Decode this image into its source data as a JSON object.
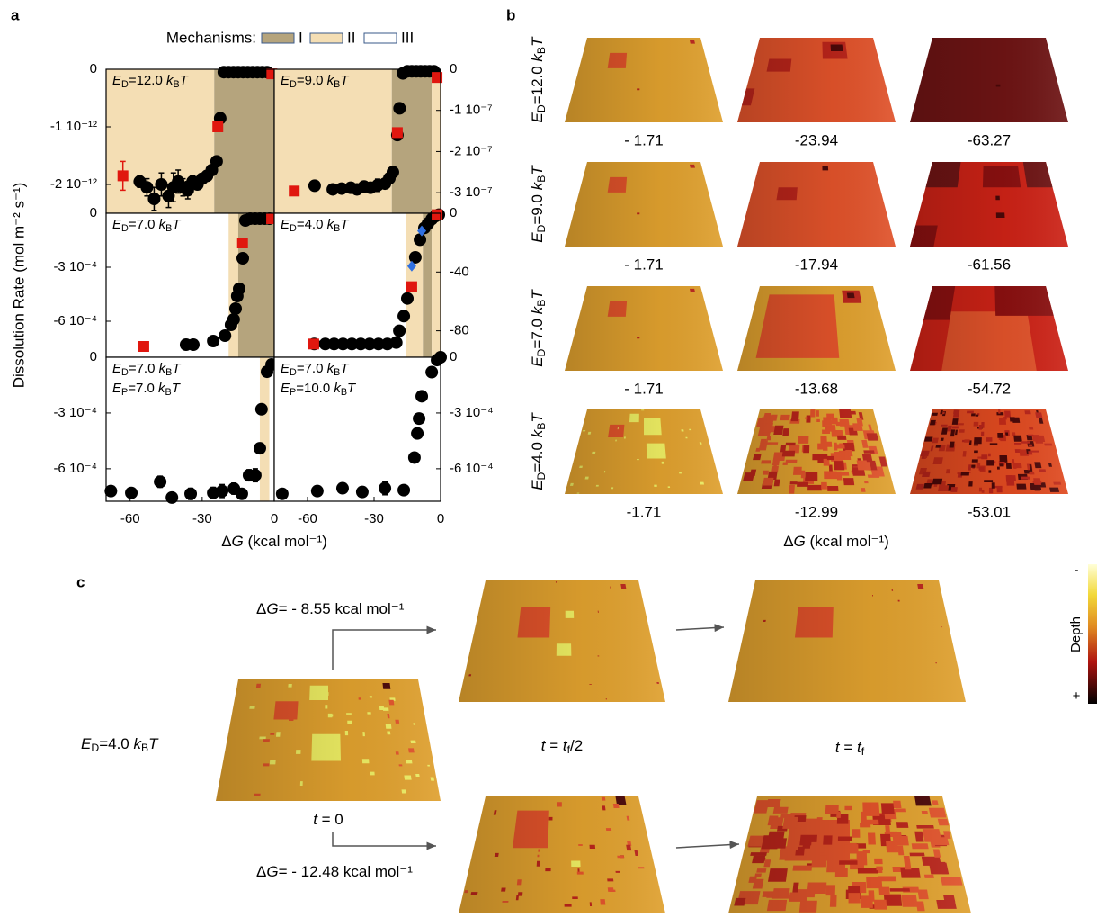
{
  "panel_a": {
    "label": "a",
    "legend_title": "Mechanisms:",
    "mechanisms": [
      {
        "name": "I",
        "color": "#b5a47d"
      },
      {
        "name": "II",
        "color": "#f4deb4"
      },
      {
        "name": "III",
        "color": "#ffffff"
      }
    ],
    "ylabel": "Dissolution Rate (mol m⁻² s⁻¹)",
    "xlabel": [
      "Δ",
      "G",
      " (kcal mol⁻¹)"
    ]
  },
  "chart_data": [
    {
      "type": "scatter",
      "annotation": [
        [
          "E",
          {
            "sub": "D"
          },
          "=12.0 ",
          "k",
          {
            "sub": "B"
          },
          "T"
        ]
      ],
      "xlim": [
        -70,
        0
      ],
      "ylim": [
        -2.5e-12,
        0
      ],
      "yticks": [
        0,
        {
          "value": -1e-12,
          "label": "-1 10⁻¹²"
        },
        {
          "value": -2e-12,
          "label": "-2 10⁻¹²"
        }
      ],
      "regions": [
        {
          "mechanism": "II",
          "from": -70,
          "to": -25
        },
        {
          "mechanism": "I",
          "from": -25,
          "to": 0
        }
      ],
      "series": [
        {
          "marker": "circle",
          "color": "#000000",
          "x": [
            -56,
            -53,
            -50,
            -47,
            -44,
            -42,
            -40,
            -38,
            -36,
            -34,
            -32,
            -30,
            -28,
            -26,
            -24,
            -22.5,
            -21,
            -19,
            -17,
            -15,
            -13,
            -11,
            -9,
            -7,
            -5,
            -3
          ],
          "values": [
            -1.95e-12,
            -2.05e-12,
            -2.25e-12,
            -2e-12,
            -2.2e-12,
            -2.05e-12,
            -1.95e-12,
            -2.05e-12,
            -2.1e-12,
            -1.95e-12,
            -2e-12,
            -1.9e-12,
            -1.85e-12,
            -1.75e-12,
            -1.6e-12,
            -8.5e-13,
            -5e-14,
            -5e-14,
            -5e-14,
            -5e-14,
            -5e-14,
            -5e-14,
            -5e-14,
            -5e-14,
            -5e-14,
            -5e-14
          ],
          "errors": [
            1e-13,
            1.5e-13,
            2e-13,
            2e-13,
            2e-13,
            2.5e-13,
            2e-13,
            1.5e-13,
            1.5e-13,
            1e-13,
            null,
            null,
            null,
            null,
            null,
            null,
            null,
            null,
            null,
            null,
            null,
            null,
            null,
            null,
            null,
            null
          ]
        },
        {
          "marker": "square",
          "color": "#e0170f",
          "x": [
            -63,
            -23.5,
            -1
          ],
          "values": [
            -1.85e-12,
            -1e-12,
            -8e-14
          ],
          "errors": [
            2.5e-13,
            null,
            null
          ]
        }
      ]
    },
    {
      "type": "scatter",
      "annotation": [
        [
          "E",
          {
            "sub": "D"
          },
          "=9.0 ",
          "k",
          {
            "sub": "B"
          },
          "T"
        ]
      ],
      "xlim": [
        -75,
        0
      ],
      "ylim": [
        -3.5e-07,
        0
      ],
      "yticks": [
        0,
        {
          "value": -1e-07,
          "label": "-1 10⁻⁷"
        },
        {
          "value": -2e-07,
          "label": "-2 10⁻⁷"
        },
        {
          "value": -3e-07,
          "label": "-3 10⁻⁷"
        }
      ],
      "regions": [
        {
          "mechanism": "II",
          "from": -75,
          "to": -22
        },
        {
          "mechanism": "I",
          "from": -22,
          "to": -4
        },
        {
          "mechanism": "II",
          "from": -4,
          "to": 0
        }
      ],
      "series": [
        {
          "marker": "circle",
          "color": "#000000",
          "x": [
            -56.8,
            -48.6,
            -44.6,
            -40.5,
            -37.7,
            -34.5,
            -31.6,
            -28.4,
            -25.1,
            -23.1,
            -21.5,
            -19.5,
            -18.5,
            -17,
            -15,
            -13,
            -11,
            -9,
            -7,
            -5,
            -3
          ],
          "values": [
            -2.83e-07,
            -2.92e-07,
            -2.9e-07,
            -2.88e-07,
            -2.92e-07,
            -2.85e-07,
            -2.88e-07,
            -2.82e-07,
            -2.78e-07,
            -2.65e-07,
            -2.5e-07,
            -1.6e-07,
            -9.5e-08,
            -1e-08,
            -5e-09,
            -5e-09,
            -5e-09,
            -5e-09,
            -5e-09,
            -5e-09,
            -5e-09
          ],
          "errors": [
            null,
            null,
            null,
            1e-08,
            1.2e-08,
            1.2e-08,
            1e-08,
            1.5e-08,
            1.2e-08,
            null,
            null,
            null,
            null,
            null,
            null,
            null,
            null,
            null,
            null,
            null,
            null
          ]
        },
        {
          "marker": "square",
          "color": "#e0170f",
          "x": [
            -66,
            -19.5,
            -1.6
          ],
          "values": [
            -2.96e-07,
            -1.54e-07,
            -2e-08
          ],
          "errors": [
            null,
            null,
            null
          ]
        }
      ]
    },
    {
      "type": "scatter",
      "annotation": [
        [
          "E",
          {
            "sub": "D"
          },
          "=7.0 ",
          "k",
          {
            "sub": "B"
          },
          "T"
        ]
      ],
      "xlim": [
        -70,
        0
      ],
      "ylim": [
        -0.0008,
        0
      ],
      "yticks": [
        0,
        {
          "value": -0.0003,
          "label": "-3 10⁻⁴"
        },
        {
          "value": -0.0006,
          "label": "-6 10⁻⁴"
        }
      ],
      "regions": [
        {
          "mechanism": "III",
          "from": -70,
          "to": -19
        },
        {
          "mechanism": "II",
          "from": -19,
          "to": -15
        },
        {
          "mechanism": "I",
          "from": -15,
          "to": 0
        }
      ],
      "series": [
        {
          "marker": "circle",
          "color": "#000000",
          "x": [
            -36.7,
            -33.7,
            -25.4,
            -20.5,
            -18,
            -16.9,
            -16.1,
            -15.4,
            -14.6,
            -13.1,
            -12,
            -10,
            -8,
            -6,
            -4,
            -2
          ],
          "values": [
            -0.00073,
            -0.00073,
            -0.00071,
            -0.00068,
            -0.00062,
            -0.00059,
            -0.00053,
            -0.00046,
            -0.00042,
            -0.00025,
            -4e-05,
            -3e-05,
            -3e-05,
            -3e-05,
            -3e-05,
            -3e-05
          ],
          "errors": [
            null,
            null,
            null,
            null,
            null,
            null,
            null,
            null,
            null,
            null,
            null,
            null,
            null,
            null,
            null,
            null
          ]
        },
        {
          "marker": "square",
          "color": "#e0170f",
          "x": [
            -54.3,
            -13.2,
            -1.1
          ],
          "values": [
            -0.00074,
            -0.000165,
            -3e-05
          ],
          "errors": [
            null,
            null,
            null
          ]
        }
      ]
    },
    {
      "type": "scatter",
      "annotation": [
        [
          "E",
          {
            "sub": "D"
          },
          "=4.0 ",
          "k",
          {
            "sub": "B"
          },
          "T"
        ]
      ],
      "xlim": [
        -75,
        0
      ],
      "ylim": [
        -98,
        0
      ],
      "yticks": [
        0,
        -40,
        -80
      ],
      "regions": [
        {
          "mechanism": "III",
          "from": -75,
          "to": -15.4
        },
        {
          "mechanism": "II",
          "from": -15.4,
          "to": -8
        },
        {
          "mechanism": "I",
          "from": -8,
          "to": -4
        },
        {
          "mechanism": "II",
          "from": -4,
          "to": 0
        }
      ],
      "series": [
        {
          "marker": "circle",
          "color": "#000000",
          "x": [
            -57,
            -52,
            -48,
            -44,
            -40,
            -36,
            -32,
            -28,
            -24,
            -20,
            -18.6,
            -16.6,
            -15,
            -11.4,
            -9.3,
            -7.3,
            -5.7,
            -4,
            -2.4,
            -0.8
          ],
          "values": [
            -89,
            -89,
            -89,
            -89,
            -89,
            -89,
            -89,
            -89,
            -89,
            -88,
            -80,
            -70,
            -58,
            -30,
            -18,
            -10,
            -7,
            -4,
            -2,
            -1
          ],
          "errors": [
            null,
            null,
            null,
            null,
            null,
            null,
            null,
            null,
            null,
            null,
            null,
            null,
            null,
            null,
            null,
            null,
            null,
            null,
            null,
            null
          ]
        },
        {
          "marker": "square",
          "color": "#e0170f",
          "x": [
            -57.2,
            -13,
            -1.6
          ],
          "values": [
            -89,
            -50,
            -1
          ],
          "errors": [
            null,
            null,
            null
          ]
        },
        {
          "marker": "diamond",
          "color": "#2f6fe0",
          "x": [
            -13,
            -8.5
          ],
          "values": [
            -36,
            -12
          ],
          "errors": [
            null,
            null
          ]
        }
      ]
    },
    {
      "type": "scatter",
      "annotation": [
        [
          "E",
          {
            "sub": "D"
          },
          "=7.0 ",
          "k",
          {
            "sub": "B"
          },
          "T"
        ],
        [
          "E",
          {
            "sub": "P"
          },
          "=7.0 ",
          "k",
          {
            "sub": "B"
          },
          "T"
        ]
      ],
      "xlim": [
        -70,
        0
      ],
      "ylim": [
        -0.000775,
        0
      ],
      "xticks": [
        -60,
        -30,
        0
      ],
      "yticks": [
        0,
        {
          "value": -0.0003,
          "label": "-3 10⁻⁴"
        },
        {
          "value": -0.0006,
          "label": "-6 10⁻⁴"
        }
      ],
      "regions": [
        {
          "mechanism": "III",
          "from": -70,
          "to": -6
        },
        {
          "mechanism": "II",
          "from": -6,
          "to": -2
        },
        {
          "mechanism": "III",
          "from": -2,
          "to": 0
        }
      ],
      "series": [
        {
          "marker": "circle",
          "color": "#000000",
          "x": [
            -68,
            -59.5,
            -47.5,
            -42.6,
            -34.8,
            -25.4,
            -21.7,
            -16.8,
            -13.5,
            -10.5,
            -7.9,
            -6,
            -5.3,
            -3,
            -1.1
          ],
          "values": [
            -0.00072,
            -0.00073,
            -0.00067,
            -0.000755,
            -0.000735,
            -0.00073,
            -0.00072,
            -0.000707,
            -0.000735,
            -0.000635,
            -0.000635,
            -0.00049,
            -0.00028,
            -7.8e-05,
            -3.9e-05
          ],
          "errors": [
            null,
            2.5e-05,
            3e-05,
            null,
            3e-05,
            3e-05,
            3.5e-05,
            3e-05,
            null,
            3e-05,
            3.5e-05,
            2.5e-05,
            null,
            null,
            null
          ]
        }
      ]
    },
    {
      "type": "scatter",
      "annotation": [
        [
          "E",
          {
            "sub": "D"
          },
          "=7.0 ",
          "k",
          {
            "sub": "B"
          },
          "T"
        ],
        [
          "E",
          {
            "sub": "P"
          },
          "=10.0 ",
          "k",
          {
            "sub": "B"
          },
          "T"
        ]
      ],
      "xlim": [
        -75,
        0
      ],
      "ylim": [
        -0.000775,
        0
      ],
      "xticks": [
        -60,
        -30,
        0
      ],
      "yticks": [
        0,
        {
          "value": -0.0003,
          "label": "-3 10⁻⁴"
        },
        {
          "value": -0.0006,
          "label": "-6 10⁻⁴"
        }
      ],
      "regions": [
        {
          "mechanism": "III",
          "from": -75,
          "to": 0
        }
      ],
      "series": [
        {
          "marker": "circle",
          "color": "#000000",
          "x": [
            -71.4,
            -55.6,
            -44.2,
            -35.3,
            -25.1,
            -16.6,
            -11.8,
            -10.5,
            -9.7,
            -8.5,
            -4,
            -1.6,
            0
          ],
          "values": [
            -0.000735,
            -0.00072,
            -0.000705,
            -0.000725,
            -0.000705,
            -0.000715,
            -0.00054,
            -0.00041,
            -0.00033,
            -0.00021,
            -8e-05,
            -1.5e-05,
            0
          ],
          "errors": [
            null,
            null,
            2.5e-05,
            null,
            3.5e-05,
            null,
            null,
            null,
            null,
            null,
            null,
            null,
            null
          ]
        }
      ]
    }
  ],
  "panel_b": {
    "label": "b",
    "rows": [
      {
        "label": [
          "E",
          {
            "sub": "D"
          },
          "=12.0 ",
          "k",
          {
            "sub": "B"
          },
          "T"
        ],
        "values": [
          "- 1.71",
          "-23.94",
          "-63.27"
        ]
      },
      {
        "label": [
          "E",
          {
            "sub": "D"
          },
          "=9.0 ",
          "k",
          {
            "sub": "B"
          },
          "T"
        ],
        "values": [
          "- 1.71",
          "-17.94",
          "-61.56"
        ]
      },
      {
        "label": [
          "E",
          {
            "sub": "D"
          },
          "=7.0 ",
          "k",
          {
            "sub": "B"
          },
          "T"
        ],
        "values": [
          "- 1.71",
          "-13.68",
          "-54.72"
        ]
      },
      {
        "label": [
          "E",
          {
            "sub": "D"
          },
          "=4.0 ",
          "k",
          {
            "sub": "B"
          },
          "T"
        ],
        "values": [
          "-1.71",
          "-12.99",
          "-53.01"
        ]
      }
    ],
    "xlabel": [
      "Δ",
      "G",
      " (kcal mol⁻¹)"
    ]
  },
  "panel_c": {
    "label": "c",
    "row_label": [
      "E",
      {
        "sub": "D"
      },
      "=4.0 ",
      "k",
      {
        "sub": "B"
      },
      "T"
    ],
    "upper_condition": [
      "Δ",
      "G",
      "= - 8.55 kcal mol⁻¹"
    ],
    "lower_condition": [
      "Δ",
      "G",
      "= - 12.48 kcal mol⁻¹"
    ],
    "time_start": [
      "t",
      " = 0"
    ],
    "time_half": [
      "t",
      " = ",
      "t",
      {
        "sub": "f"
      },
      "/2"
    ],
    "time_end": [
      "t",
      " = ",
      "t",
      {
        "sub": "f"
      }
    ],
    "colorbar": {
      "title": "Depth",
      "top_label": "-",
      "bottom_label": "+"
    }
  }
}
